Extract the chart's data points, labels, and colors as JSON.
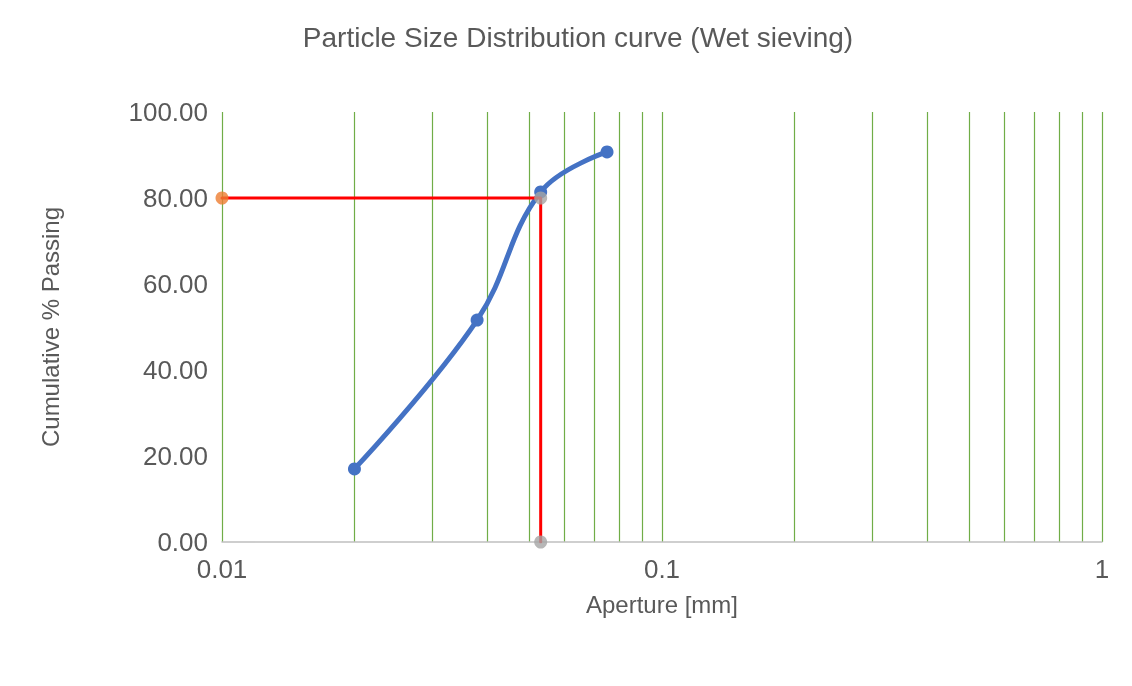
{
  "chart_data": {
    "type": "line",
    "title": "Particle Size Distribution curve (Wet sieving)",
    "xlabel": "Aperture [mm]",
    "ylabel": "Cumulative % Passing",
    "log": "x",
    "grid": "x",
    "xlim": [
      0.01,
      1
    ],
    "ylim": [
      0,
      100
    ],
    "xticks": [
      0.01,
      {
        "value": 0.02,
        "label": null
      },
      {
        "value": 0.03,
        "label": null
      },
      {
        "value": 0.04,
        "label": null
      },
      {
        "value": 0.05,
        "label": null
      },
      {
        "value": 0.06,
        "label": null
      },
      {
        "value": 0.07,
        "label": null
      },
      {
        "value": 0.08,
        "label": null
      },
      {
        "value": 0.09,
        "label": null
      },
      0.1,
      {
        "value": 0.2,
        "label": null
      },
      {
        "value": 0.3,
        "label": null
      },
      {
        "value": 0.4,
        "label": null
      },
      {
        "value": 0.5,
        "label": null
      },
      {
        "value": 0.6,
        "label": null
      },
      {
        "value": 0.7,
        "label": null
      },
      {
        "value": 0.8,
        "label": null
      },
      {
        "value": 0.9,
        "label": null
      },
      1
    ],
    "yticks": [
      {
        "value": 0,
        "label": "0.00"
      },
      {
        "value": 20,
        "label": "20.00"
      },
      {
        "value": 40,
        "label": "40.00"
      },
      {
        "value": 60,
        "label": "60.00"
      },
      {
        "value": 80,
        "label": "80.00"
      },
      {
        "value": 100,
        "label": "100.00"
      }
    ],
    "series": [
      {
        "color": "#4472c4",
        "marker": "circle",
        "x": [
          0.02,
          0.038,
          0.053,
          0.075
        ],
        "values": [
          17,
          51.6,
          81.4,
          90.7
        ]
      },
      {
        "color": "#ff0000",
        "marker": "none",
        "x": [
          0.01,
          0.053,
          0.053
        ],
        "values": [
          80,
          80,
          0
        ]
      },
      {
        "type": "scatter",
        "color": "#ed7d31",
        "marker": "circle",
        "x": [
          0.01
        ],
        "values": [
          80
        ]
      },
      {
        "type": "scatter",
        "color": "#a5a5a5",
        "marker": "circle",
        "x": [
          0.053,
          0.053
        ],
        "values": [
          80,
          0
        ]
      }
    ]
  }
}
